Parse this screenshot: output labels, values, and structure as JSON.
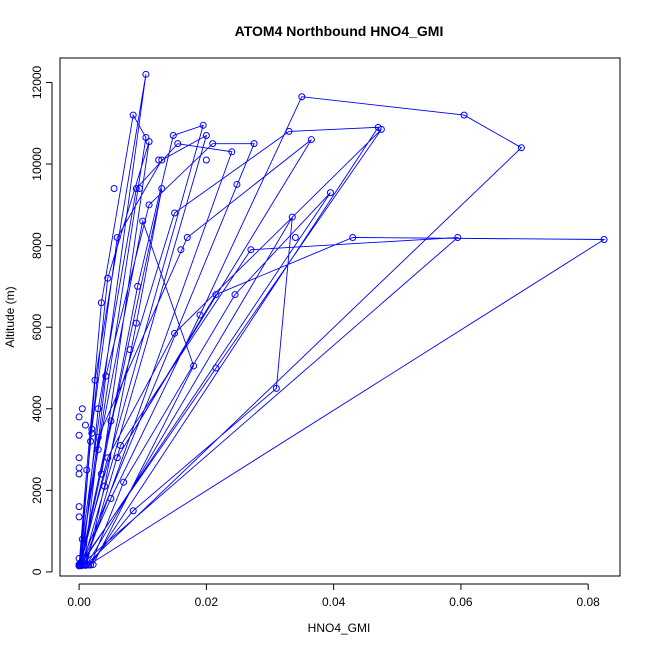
{
  "chart_data": {
    "type": "scatter",
    "title": "ATOM4 Northbound HNO4_GMI",
    "xlabel": "HNO4_GMI",
    "ylabel": "Altitude (m)",
    "xlim": [
      -0.003,
      0.085
    ],
    "ylim": [
      -100,
      12600
    ],
    "x_ticks": [
      0.0,
      0.02,
      0.04,
      0.06,
      0.08
    ],
    "x_tick_labels": [
      "0.00",
      "0.02",
      "0.04",
      "0.06",
      "0.08"
    ],
    "y_ticks": [
      0,
      2000,
      4000,
      6000,
      8000,
      10000,
      12000
    ],
    "y_tick_labels": [
      "0",
      "2000",
      "4000",
      "6000",
      "8000",
      "10000",
      "12000"
    ],
    "grid": false,
    "series_color": "#0000ff",
    "series": [
      {
        "style": "line+points",
        "x": [
          0.0,
          0.0005,
          0.0025,
          0.0105,
          0.0,
          0.0012,
          0.0035,
          0.0085,
          0.0105,
          0.0002,
          0.0018,
          0.0045,
          0.011,
          0.0035,
          0.0092,
          0.0148,
          0.0195,
          0.0,
          0.002,
          0.006,
          0.013,
          0.02,
          0.0005,
          0.003,
          0.009,
          0.0155,
          0.024,
          0.0008,
          0.0042,
          0.011,
          0.021,
          0.0275,
          0.0002,
          0.005,
          0.015,
          0.033,
          0.047,
          0.0018,
          0.007,
          0.0245,
          0.0395,
          0.0002,
          0.003,
          0.017,
          0.0365,
          0.006,
          0.0215,
          0.043,
          0.0825,
          0.0015,
          0.0085,
          0.031,
          0.0335,
          0.0012,
          0.004,
          0.009,
          0.013,
          0.0003,
          0.005,
          0.019,
          0.035,
          0.0605,
          0.0695,
          0.001,
          0.0065,
          0.027,
          0.0595,
          0.0002,
          0.0045,
          0.015,
          0.0475,
          0.0,
          0.003,
          0.01,
          0.018,
          0.0022
        ],
        "y": [
          150,
          800,
          4700,
          12200,
          180,
          2500,
          6600,
          11200,
          10650,
          220,
          3200,
          7200,
          10550,
          2400,
          7000,
          10700,
          10950,
          170,
          3500,
          8200,
          10100,
          10700,
          160,
          4000,
          9400,
          10500,
          10300,
          170,
          4800,
          9000,
          10500,
          10500,
          180,
          3700,
          8800,
          10800,
          10900,
          170,
          2200,
          6800,
          9300,
          160,
          3300,
          8200,
          10600,
          2800,
          6800,
          8200,
          8150,
          170,
          1500,
          4500,
          8700,
          175,
          2100,
          6100,
          9400,
          150,
          1800,
          6300,
          11650,
          11200,
          10400,
          160,
          3100,
          7900,
          8200,
          160,
          2800,
          5850,
          10850,
          150,
          3000,
          8600,
          5050,
          180
        ],
        "extra_points_x": [
          0.0,
          0.0,
          0.0,
          0.0,
          0.0,
          0.0,
          0.0,
          0.0,
          0.0005,
          0.001,
          0.002,
          0.0055,
          0.008,
          0.0095,
          0.0125,
          0.016,
          0.0215,
          0.02,
          0.0248,
          0.034
        ],
        "extra_points_y": [
          3350,
          3800,
          2800,
          2550,
          2400,
          1600,
          1350,
          330,
          4000,
          3600,
          3400,
          9400,
          5450,
          9400,
          10100,
          7900,
          5000,
          10100,
          9500,
          8200
        ]
      }
    ]
  }
}
